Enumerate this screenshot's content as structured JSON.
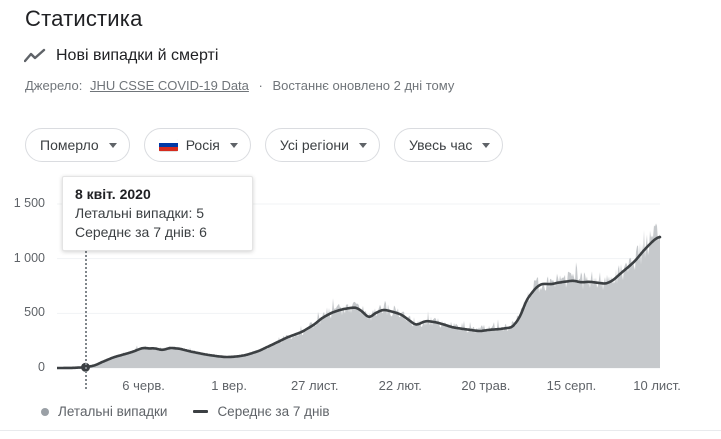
{
  "header": {
    "title": "Статистика",
    "section_title": "Нові випадки й смерті",
    "source_label": "Джерело:",
    "source_link": "JHU CSSE COVID-19 Data",
    "source_sep": "·",
    "source_updated": "Востаннє оновлено 2 дні тому"
  },
  "filters": {
    "metric": "Померло",
    "country": "Росія",
    "region": "Усі регіони",
    "time": "Увесь час"
  },
  "tooltip": {
    "date": "8 квіт. 2020",
    "daily_label": "Летальні випадки: 5",
    "avg_label": "Середнє за 7 днів: 6"
  },
  "legend": {
    "daily": "Летальні випадки",
    "avg": "Середнє за 7 днів"
  },
  "colors": {
    "area_fill": "#c6c9cc",
    "avg_line": "#3c4043",
    "gridline": "#f1f3f4",
    "flag_white": "#ffffff",
    "flag_blue": "#0039a6",
    "flag_red": "#d52b1e"
  },
  "chart_data": {
    "type": "area",
    "title": "Нові випадки й смерті",
    "x_range": [
      "2020-03-10",
      "2021-11-13"
    ],
    "ylim": [
      0,
      1500
    ],
    "y_ticks": [
      0,
      500,
      1000,
      1500
    ],
    "y_tick_labels": [
      "0",
      "500",
      "1 000",
      "1 500"
    ],
    "x_tick_dates": [
      "2020-06-06",
      "2020-09-01",
      "2020-11-27",
      "2021-02-22",
      "2021-05-20",
      "2021-08-15",
      "2021-11-10"
    ],
    "x_tick_labels": [
      "6 черв.",
      "1 вер.",
      "27 лист.",
      "22 лют.",
      "20 трав.",
      "15 серп.",
      "10 лист."
    ],
    "grid": true,
    "legend_position": "bottom",
    "highlighted_point": {
      "date": "2020-04-08",
      "daily": 5,
      "avg7": 6
    },
    "series": [
      {
        "name": "Летальні випадки",
        "type": "bars",
        "color": "#c6c9cc"
      },
      {
        "name": "Середнє за 7 днів",
        "type": "line",
        "color": "#3c4043",
        "points": [
          [
            "2020-03-10",
            0
          ],
          [
            "2020-03-25",
            1
          ],
          [
            "2020-04-08",
            6
          ],
          [
            "2020-04-18",
            25
          ],
          [
            "2020-04-25",
            55
          ],
          [
            "2020-05-07",
            100
          ],
          [
            "2020-05-16",
            122
          ],
          [
            "2020-05-26",
            148
          ],
          [
            "2020-06-05",
            185
          ],
          [
            "2020-06-12",
            178
          ],
          [
            "2020-06-17",
            182
          ],
          [
            "2020-06-25",
            162
          ],
          [
            "2020-07-03",
            185
          ],
          [
            "2020-07-13",
            176
          ],
          [
            "2020-07-25",
            148
          ],
          [
            "2020-08-09",
            122
          ],
          [
            "2020-08-22",
            105
          ],
          [
            "2020-08-29",
            100
          ],
          [
            "2020-09-08",
            104
          ],
          [
            "2020-09-18",
            118
          ],
          [
            "2020-10-01",
            155
          ],
          [
            "2020-10-14",
            210
          ],
          [
            "2020-10-30",
            280
          ],
          [
            "2020-11-14",
            330
          ],
          [
            "2020-11-27",
            400
          ],
          [
            "2020-12-04",
            455
          ],
          [
            "2020-12-14",
            505
          ],
          [
            "2020-12-24",
            535
          ],
          [
            "2021-01-01",
            548
          ],
          [
            "2021-01-08",
            555
          ],
          [
            "2021-01-14",
            520
          ],
          [
            "2021-01-21",
            455
          ],
          [
            "2021-01-28",
            505
          ],
          [
            "2021-02-05",
            535
          ],
          [
            "2021-02-14",
            515
          ],
          [
            "2021-02-23",
            490
          ],
          [
            "2021-03-10",
            390
          ],
          [
            "2021-03-20",
            432
          ],
          [
            "2021-04-01",
            415
          ],
          [
            "2021-04-17",
            370
          ],
          [
            "2021-04-28",
            356
          ],
          [
            "2021-05-07",
            345
          ],
          [
            "2021-05-14",
            336
          ],
          [
            "2021-05-22",
            348
          ],
          [
            "2021-06-03",
            356
          ],
          [
            "2021-06-16",
            372
          ],
          [
            "2021-06-24",
            470
          ],
          [
            "2021-06-30",
            620
          ],
          [
            "2021-07-10",
            737
          ],
          [
            "2021-07-16",
            772
          ],
          [
            "2021-07-25",
            765
          ],
          [
            "2021-08-01",
            780
          ],
          [
            "2021-08-17",
            800
          ],
          [
            "2021-08-25",
            782
          ],
          [
            "2021-09-02",
            790
          ],
          [
            "2021-09-10",
            780
          ],
          [
            "2021-09-19",
            770
          ],
          [
            "2021-09-26",
            800
          ],
          [
            "2021-10-05",
            873
          ],
          [
            "2021-10-12",
            925
          ],
          [
            "2021-10-19",
            982
          ],
          [
            "2021-10-26",
            1060
          ],
          [
            "2021-11-01",
            1118
          ],
          [
            "2021-11-08",
            1180
          ],
          [
            "2021-11-13",
            1205
          ]
        ]
      }
    ]
  }
}
